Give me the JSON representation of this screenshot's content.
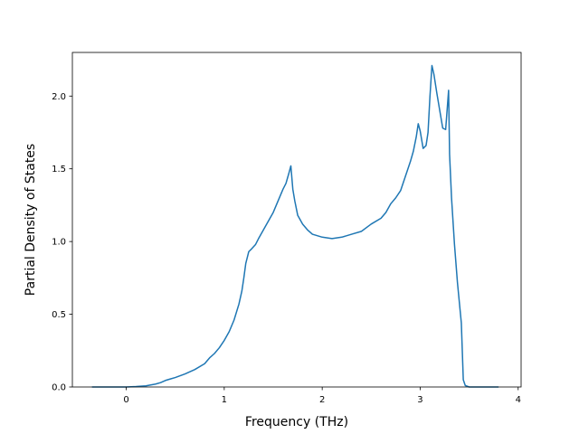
{
  "chart_data": {
    "type": "line",
    "title": "",
    "xlabel": "Frequency (THz)",
    "ylabel": "Partial Density of States",
    "xlim": [
      -0.55,
      4.03
    ],
    "ylim": [
      0.0,
      2.3
    ],
    "xticks": [
      0,
      1,
      2,
      3,
      4
    ],
    "xtick_labels": [
      "0",
      "1",
      "2",
      "3",
      "4"
    ],
    "yticks": [
      0.0,
      0.5,
      1.0,
      1.5,
      2.0
    ],
    "ytick_labels": [
      "0.0",
      "0.5",
      "1.0",
      "1.5",
      "2.0"
    ],
    "grid": false,
    "legend": "none",
    "line_color": "#1f77b4",
    "series": [
      {
        "x": [
          -0.35,
          0.0,
          0.1,
          0.2,
          0.3,
          0.35,
          0.4,
          0.45,
          0.5,
          0.6,
          0.7,
          0.8,
          0.85,
          0.9,
          0.95,
          1.0,
          1.05,
          1.1,
          1.15,
          1.18,
          1.2,
          1.22,
          1.25,
          1.28,
          1.32,
          1.35,
          1.4,
          1.45,
          1.5,
          1.55,
          1.6,
          1.63,
          1.66,
          1.68,
          1.7,
          1.72,
          1.75,
          1.8,
          1.85,
          1.9,
          2.0,
          2.1,
          2.2,
          2.3,
          2.4,
          2.5,
          2.6,
          2.65,
          2.7,
          2.75,
          2.8,
          2.85,
          2.9,
          2.93,
          2.96,
          2.98,
          3.0,
          3.03,
          3.06,
          3.08,
          3.1,
          3.12,
          3.14,
          3.17,
          3.2,
          3.23,
          3.26,
          3.29,
          3.3,
          3.32,
          3.35,
          3.38,
          3.42,
          3.44,
          3.46,
          3.5,
          3.6,
          3.8
        ],
        "y": [
          0.0,
          0.0,
          0.003,
          0.008,
          0.02,
          0.03,
          0.045,
          0.055,
          0.065,
          0.09,
          0.12,
          0.16,
          0.2,
          0.23,
          0.27,
          0.32,
          0.38,
          0.46,
          0.57,
          0.66,
          0.75,
          0.85,
          0.93,
          0.95,
          0.98,
          1.02,
          1.08,
          1.14,
          1.2,
          1.28,
          1.36,
          1.4,
          1.47,
          1.52,
          1.36,
          1.28,
          1.18,
          1.12,
          1.08,
          1.05,
          1.03,
          1.02,
          1.03,
          1.05,
          1.07,
          1.12,
          1.16,
          1.2,
          1.26,
          1.3,
          1.35,
          1.45,
          1.55,
          1.62,
          1.72,
          1.81,
          1.76,
          1.64,
          1.66,
          1.75,
          2.0,
          2.21,
          2.15,
          2.02,
          1.9,
          1.78,
          1.77,
          2.04,
          1.6,
          1.3,
          0.98,
          0.72,
          0.44,
          0.05,
          0.01,
          0.0,
          0.0,
          0.0
        ]
      }
    ]
  }
}
